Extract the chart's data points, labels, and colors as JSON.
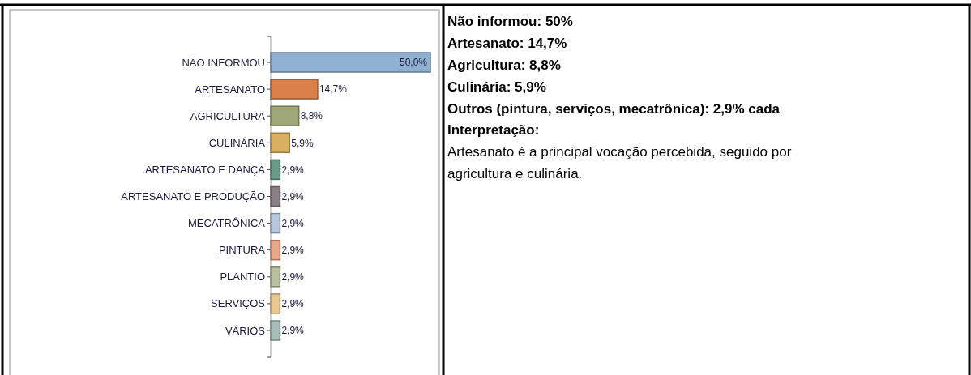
{
  "chart_data": [
    {
      "type": "bar",
      "orientation": "horizontal",
      "categories": [
        "NÃO INFORMOU",
        "ARTESANATO",
        "AGRICULTURA",
        "CULINÁRIA",
        "ARTESANATO E DANÇA",
        "ARTESANATO E PRODUÇÃO",
        "MECATRÔNICA",
        "PINTURA",
        "PLANTIO",
        "SERVIÇOS",
        "VÁRIOS"
      ],
      "values": [
        50,
        14.7,
        8.8,
        5.9,
        2.9,
        2.9,
        2.9,
        2.9,
        2.9,
        2.9,
        2.9
      ],
      "value_labels": [
        "50,0%",
        "14,7%",
        "8,8%",
        "5,9%",
        "2,9%",
        "2,9%",
        "2,9%",
        "2,9%",
        "2,9%",
        "2,9%",
        "2,9%"
      ],
      "colors": [
        "#8fb0d0",
        "#d9804a",
        "#a0a878",
        "#d8b060",
        "#6a9a88",
        "#8a8088",
        "#b8c8dc",
        "#e8a888",
        "#b8c0a0",
        "#e8c890",
        "#a8bcb8"
      ]
    },
    {
      "type": "other",
      "annotations": [
        "Não informou: 50%",
        "Artesanato: 14,7%",
        "Agricultura: 8,8%",
        "Culinária: 5,9%",
        "Outros (pintura, serviços, mecatrônica): 2,9% cada",
        "Interpretação:",
        "Artesanato é a principal vocação percebida, seguido por",
        "agricultura e culinária."
      ]
    }
  ]
}
